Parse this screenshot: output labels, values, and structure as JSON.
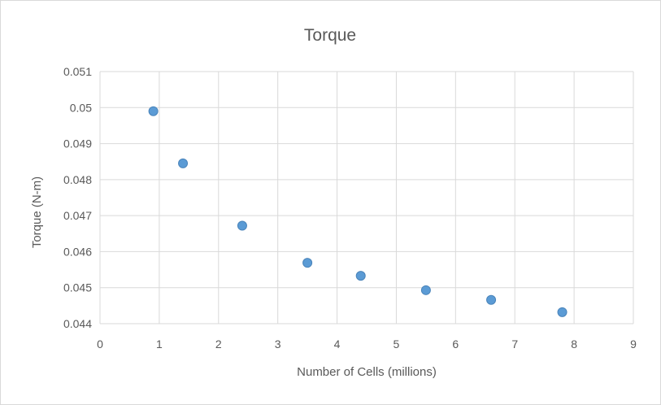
{
  "chart_data": {
    "type": "scatter",
    "title": "Torque",
    "xlabel": "Number of Cells (millions)",
    "ylabel": "Torque (N-m)",
    "xlim": [
      0,
      9
    ],
    "ylim": [
      0.044,
      0.051
    ],
    "x_ticks": [
      "0",
      "1",
      "2",
      "3",
      "4",
      "5",
      "6",
      "7",
      "8",
      "9"
    ],
    "y_ticks": [
      "0.044",
      "0.045",
      "0.046",
      "0.047",
      "0.048",
      "0.049",
      "0.05",
      "0.051"
    ],
    "grid": true,
    "legend": "none",
    "marker_color": "#5b9bd5",
    "marker_edge_color": "#4a84ba",
    "gridline_color": "#d9d9d9",
    "x": [
      0.9,
      1.4,
      2.4,
      3.5,
      4.4,
      5.5,
      6.6,
      7.8
    ],
    "y": [
      0.0499,
      0.04845,
      0.04672,
      0.04569,
      0.04533,
      0.04493,
      0.04466,
      0.04432
    ]
  }
}
